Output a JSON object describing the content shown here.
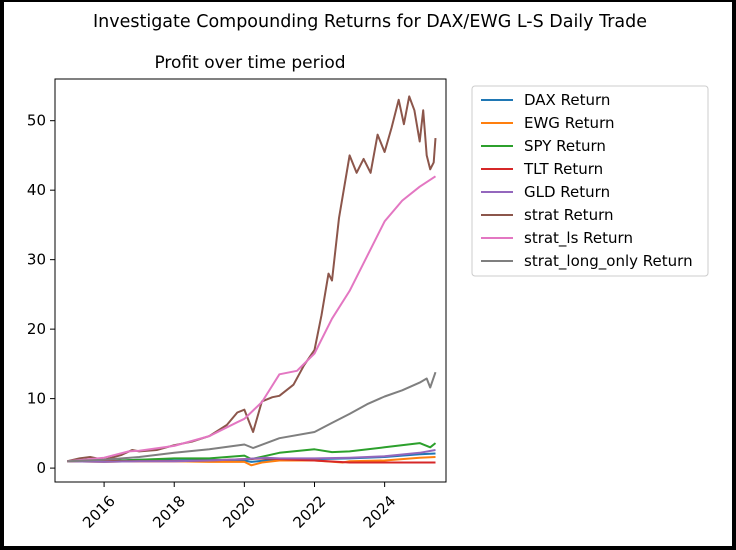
{
  "figure_title": "Investigate Compounding Returns for DAX/EWG L-S Daily Trade",
  "chart_data": {
    "type": "line",
    "title": "Profit over time period",
    "xlabel": "",
    "ylabel": "",
    "xlim": [
      2014.6,
      2025.75
    ],
    "ylim": [
      -2,
      56
    ],
    "x_ticks": [
      "2016",
      "2018",
      "2020",
      "2022",
      "2024"
    ],
    "y_ticks": [
      "0",
      "10",
      "20",
      "30",
      "40",
      "50"
    ],
    "legend_position": "outside-right",
    "grid": false,
    "series": [
      {
        "name": "DAX Return",
        "color": "#1f77b4",
        "points": [
          [
            2014.95,
            1.0
          ],
          [
            2016,
            1.0
          ],
          [
            2017,
            1.2
          ],
          [
            2018,
            1.1
          ],
          [
            2019,
            1.2
          ],
          [
            2020,
            1.1
          ],
          [
            2020.2,
            0.9
          ],
          [
            2021,
            1.3
          ],
          [
            2022,
            1.3
          ],
          [
            2023,
            1.4
          ],
          [
            2024,
            1.6
          ],
          [
            2025,
            2.0
          ],
          [
            2025.45,
            2.1
          ]
        ]
      },
      {
        "name": "EWG Return",
        "color": "#ff7f0e",
        "points": [
          [
            2014.95,
            1.0
          ],
          [
            2016,
            0.9
          ],
          [
            2017,
            1.0
          ],
          [
            2018,
            1.0
          ],
          [
            2019,
            0.9
          ],
          [
            2020,
            0.9
          ],
          [
            2020.2,
            0.4
          ],
          [
            2020.5,
            0.8
          ],
          [
            2021,
            1.1
          ],
          [
            2022,
            1.1
          ],
          [
            2022.8,
            0.8
          ],
          [
            2023,
            1.0
          ],
          [
            2024,
            1.1
          ],
          [
            2025,
            1.5
          ],
          [
            2025.45,
            1.6
          ]
        ]
      },
      {
        "name": "SPY Return",
        "color": "#2ca02c",
        "points": [
          [
            2014.95,
            1.0
          ],
          [
            2016,
            1.0
          ],
          [
            2017,
            1.2
          ],
          [
            2018,
            1.4
          ],
          [
            2019,
            1.4
          ],
          [
            2020,
            1.8
          ],
          [
            2020.2,
            1.3
          ],
          [
            2021,
            2.2
          ],
          [
            2022,
            2.7
          ],
          [
            2022.5,
            2.3
          ],
          [
            2023,
            2.4
          ],
          [
            2024,
            3.0
          ],
          [
            2025,
            3.6
          ],
          [
            2025.3,
            3.0
          ],
          [
            2025.45,
            3.6
          ]
        ]
      },
      {
        "name": "TLT Return",
        "color": "#d62728",
        "points": [
          [
            2014.95,
            1.0
          ],
          [
            2016,
            1.0
          ],
          [
            2017,
            1.0
          ],
          [
            2018,
            1.0
          ],
          [
            2019,
            1.1
          ],
          [
            2020,
            1.3
          ],
          [
            2020.6,
            1.4
          ],
          [
            2021,
            1.3
          ],
          [
            2022,
            1.1
          ],
          [
            2023,
            0.8
          ],
          [
            2024,
            0.8
          ],
          [
            2025,
            0.8
          ],
          [
            2025.45,
            0.8
          ]
        ]
      },
      {
        "name": "GLD Return",
        "color": "#9467bd",
        "points": [
          [
            2014.95,
            1.0
          ],
          [
            2016,
            0.9
          ],
          [
            2017,
            1.0
          ],
          [
            2018,
            1.0
          ],
          [
            2019,
            1.1
          ],
          [
            2020,
            1.3
          ],
          [
            2020.6,
            1.5
          ],
          [
            2021,
            1.4
          ],
          [
            2022,
            1.4
          ],
          [
            2023,
            1.5
          ],
          [
            2024,
            1.7
          ],
          [
            2025,
            2.2
          ],
          [
            2025.45,
            2.6
          ]
        ]
      },
      {
        "name": "strat Return",
        "color": "#8c564b",
        "points": [
          [
            2014.95,
            1.0
          ],
          [
            2015.3,
            1.4
          ],
          [
            2015.6,
            1.6
          ],
          [
            2016,
            1.2
          ],
          [
            2016.5,
            1.9
          ],
          [
            2016.8,
            2.6
          ],
          [
            2017,
            2.4
          ],
          [
            2017.5,
            2.6
          ],
          [
            2018,
            3.3
          ],
          [
            2018.5,
            3.8
          ],
          [
            2019,
            4.6
          ],
          [
            2019.5,
            6.2
          ],
          [
            2019.8,
            8.0
          ],
          [
            2020,
            8.4
          ],
          [
            2020.25,
            5.2
          ],
          [
            2020.5,
            9.6
          ],
          [
            2020.8,
            10.2
          ],
          [
            2021,
            10.4
          ],
          [
            2021.4,
            12.0
          ],
          [
            2021.7,
            14.8
          ],
          [
            2022,
            17.0
          ],
          [
            2022.2,
            22.0
          ],
          [
            2022.4,
            28.0
          ],
          [
            2022.5,
            27.0
          ],
          [
            2022.7,
            36.0
          ],
          [
            2022.85,
            40.5
          ],
          [
            2023,
            45.0
          ],
          [
            2023.2,
            42.5
          ],
          [
            2023.4,
            44.5
          ],
          [
            2023.6,
            42.5
          ],
          [
            2023.8,
            48.0
          ],
          [
            2024,
            45.5
          ],
          [
            2024.2,
            49.0
          ],
          [
            2024.4,
            53.0
          ],
          [
            2024.55,
            49.5
          ],
          [
            2024.7,
            53.5
          ],
          [
            2024.85,
            51.5
          ],
          [
            2025,
            47.0
          ],
          [
            2025.1,
            51.5
          ],
          [
            2025.2,
            45.0
          ],
          [
            2025.3,
            43.0
          ],
          [
            2025.4,
            44.0
          ],
          [
            2025.45,
            47.5
          ]
        ]
      },
      {
        "name": "strat_ls Return",
        "color": "#e377c2",
        "points": [
          [
            2014.95,
            1.0
          ],
          [
            2016,
            1.5
          ],
          [
            2016.7,
            2.4
          ],
          [
            2017,
            2.5
          ],
          [
            2018,
            3.2
          ],
          [
            2019,
            4.6
          ],
          [
            2019.8,
            6.6
          ],
          [
            2020,
            7.1
          ],
          [
            2020.5,
            9.5
          ],
          [
            2021,
            13.5
          ],
          [
            2021.5,
            14.0
          ],
          [
            2022,
            16.5
          ],
          [
            2022.5,
            21.5
          ],
          [
            2023,
            25.5
          ],
          [
            2023.5,
            30.5
          ],
          [
            2024,
            35.5
          ],
          [
            2024.5,
            38.5
          ],
          [
            2025,
            40.5
          ],
          [
            2025.45,
            42.0
          ]
        ]
      },
      {
        "name": "strat_long_only Return",
        "color": "#7f7f7f",
        "points": [
          [
            2014.95,
            1.0
          ],
          [
            2016,
            1.2
          ],
          [
            2017,
            1.6
          ],
          [
            2018,
            2.2
          ],
          [
            2019,
            2.7
          ],
          [
            2020,
            3.4
          ],
          [
            2020.25,
            2.9
          ],
          [
            2021,
            4.3
          ],
          [
            2022,
            5.2
          ],
          [
            2022.5,
            6.5
          ],
          [
            2023,
            7.8
          ],
          [
            2023.5,
            9.2
          ],
          [
            2024,
            10.3
          ],
          [
            2024.5,
            11.2
          ],
          [
            2025,
            12.3
          ],
          [
            2025.2,
            12.9
          ],
          [
            2025.3,
            11.6
          ],
          [
            2025.45,
            13.8
          ]
        ]
      }
    ]
  }
}
